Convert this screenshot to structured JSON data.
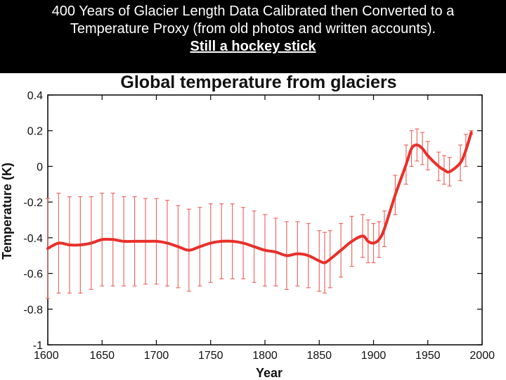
{
  "header": {
    "line1": "400 Years of Glacier Length Data Calibrated then Converted to a",
    "line2": "Temperature Proxy (from old photos and written accounts).",
    "line3": "Still a hockey stick"
  },
  "chart_data": {
    "type": "line",
    "title": "Global temperature from glaciers",
    "xlabel": "Year",
    "ylabel": "Temperature (K)",
    "xlim": [
      1600,
      2000
    ],
    "ylim": [
      -1,
      0.4
    ],
    "xticks": [
      1600,
      1650,
      1700,
      1750,
      1800,
      1850,
      1900,
      1950,
      2000
    ],
    "yticks": [
      0.4,
      0.2,
      0,
      -0.2,
      -0.4,
      -0.6,
      -0.8,
      -1
    ],
    "grid": false,
    "line_color": "#e8302a",
    "errorbar_color": "#ee6a66",
    "series": [
      {
        "x": [
          1600,
          1610,
          1620,
          1630,
          1640,
          1650,
          1660,
          1670,
          1680,
          1690,
          1700,
          1710,
          1720,
          1730,
          1740,
          1750,
          1760,
          1770,
          1780,
          1790,
          1800,
          1810,
          1820,
          1830,
          1840,
          1850,
          1855,
          1860,
          1870,
          1880,
          1890,
          1895,
          1900,
          1905,
          1910,
          1920,
          1930,
          1935,
          1940,
          1945,
          1950,
          1960,
          1965,
          1970,
          1980,
          1985,
          1990
        ],
        "values": [
          -0.46,
          -0.43,
          -0.44,
          -0.44,
          -0.43,
          -0.41,
          -0.41,
          -0.42,
          -0.42,
          -0.42,
          -0.42,
          -0.43,
          -0.45,
          -0.47,
          -0.45,
          -0.43,
          -0.42,
          -0.42,
          -0.43,
          -0.45,
          -0.47,
          -0.48,
          -0.5,
          -0.49,
          -0.5,
          -0.53,
          -0.54,
          -0.52,
          -0.47,
          -0.42,
          -0.39,
          -0.42,
          -0.43,
          -0.41,
          -0.35,
          -0.16,
          0.01,
          0.1,
          0.12,
          0.1,
          0.06,
          0.0,
          -0.02,
          -0.03,
          0.02,
          0.09,
          0.19
        ],
        "error": [
          0.28,
          0.28,
          0.27,
          0.27,
          0.26,
          0.26,
          0.26,
          0.25,
          0.25,
          0.24,
          0.24,
          0.24,
          0.23,
          0.23,
          0.22,
          0.22,
          0.21,
          0.21,
          0.2,
          0.2,
          0.2,
          0.19,
          0.19,
          0.18,
          0.18,
          0.17,
          0.17,
          0.16,
          0.15,
          0.14,
          0.12,
          0.12,
          0.11,
          0.1,
          0.1,
          0.11,
          0.11,
          0.1,
          0.09,
          0.09,
          0.08,
          0.08,
          0.08,
          0.08,
          0.1,
          0.09,
          0.01
        ]
      }
    ]
  }
}
